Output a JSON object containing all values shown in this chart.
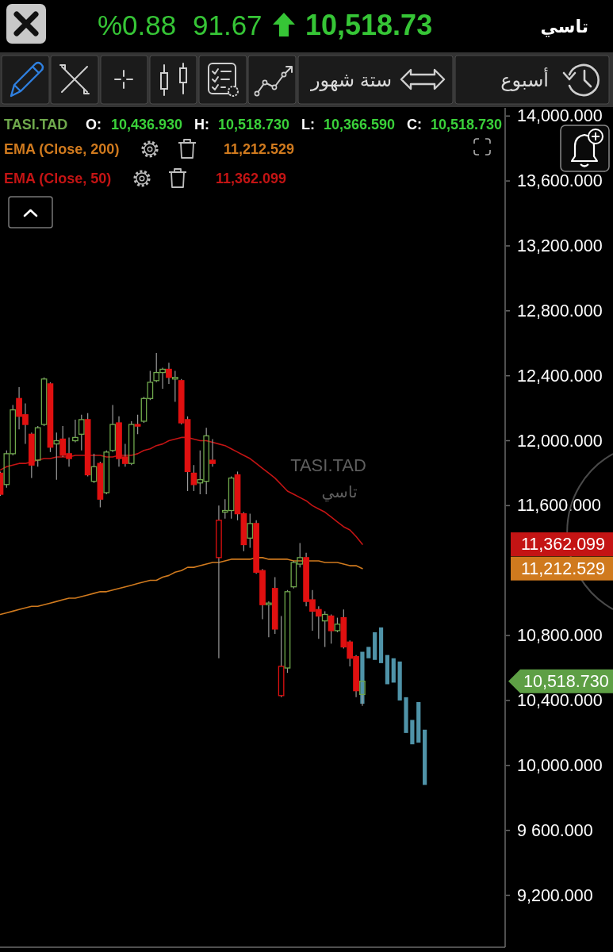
{
  "chart_data": {
    "type": "candlestick",
    "title": "تاسي",
    "categories": [
      null,
      null,
      null,
      null,
      null,
      null,
      null,
      null,
      null,
      null,
      null,
      null,
      null,
      null,
      null,
      null,
      null,
      null,
      null,
      null,
      null,
      null,
      null,
      null,
      null,
      null,
      null,
      null,
      null,
      null,
      null,
      null,
      null,
      null,
      null,
      null,
      null,
      null,
      null,
      null,
      null,
      null,
      null,
      null,
      null,
      null,
      null,
      null,
      null,
      null,
      null,
      null,
      null,
      null,
      null,
      null,
      null,
      null,
      null,
      null,
      null,
      null,
      null,
      null,
      null,
      null,
      null,
      null,
      null
    ],
    "series": [
      {
        "name": "TASI.TAD",
        "color": "#6FA84C",
        "ohlc": [
          [
            11800,
            11810,
            11660,
            11670
          ],
          [
            11730,
            11940,
            11710,
            11920
          ],
          [
            11920,
            12220,
            11910,
            12190
          ],
          [
            12260,
            12330,
            12070,
            12150
          ],
          [
            12160,
            12230,
            11980,
            12100
          ],
          [
            12040,
            12050,
            11770,
            11850
          ],
          [
            11880,
            12090,
            11840,
            12080
          ],
          [
            12100,
            12390,
            12090,
            12380
          ],
          [
            12350,
            12360,
            11930,
            11960
          ],
          [
            11980,
            12050,
            11760,
            12000
          ],
          [
            12010,
            12090,
            11900,
            11910
          ],
          [
            11920,
            12020,
            11840,
            11890
          ],
          [
            12000,
            12130,
            11990,
            12020
          ],
          [
            12040,
            12160,
            11940,
            12130
          ],
          [
            12130,
            12170,
            11780,
            11790
          ],
          [
            11750,
            11920,
            11740,
            11840
          ],
          [
            11860,
            11870,
            11590,
            11640
          ],
          [
            11680,
            11940,
            11670,
            11930
          ],
          [
            11940,
            12220,
            11930,
            12100
          ],
          [
            12110,
            12150,
            11840,
            11890
          ],
          [
            11900,
            11980,
            11840,
            11860
          ],
          [
            11860,
            12120,
            11850,
            12100
          ],
          [
            12100,
            12160,
            12040,
            12090
          ],
          [
            12120,
            12270,
            12110,
            12260
          ],
          [
            12260,
            12430,
            12250,
            12360
          ],
          [
            12370,
            12540,
            12360,
            12420
          ],
          [
            12420,
            12450,
            12320,
            12440
          ],
          [
            12440,
            12480,
            12350,
            12390
          ],
          [
            12380,
            12430,
            12240,
            12390
          ],
          [
            12370,
            12380,
            12100,
            12110
          ],
          [
            12130,
            12150,
            11690,
            11810
          ],
          [
            11800,
            11850,
            11690,
            11730
          ],
          [
            11740,
            11940,
            11670,
            11760
          ],
          [
            11750,
            12080,
            11670,
            12030
          ],
          [
            11880,
            12010,
            11840,
            11860
          ],
          [
            11280,
            11600,
            10660,
            11510
          ],
          [
            11560,
            11640,
            11520,
            11570
          ],
          [
            11570,
            11780,
            11520,
            11770
          ],
          [
            11790,
            11810,
            11510,
            11550
          ],
          [
            11550,
            11560,
            11320,
            11360
          ],
          [
            11400,
            11550,
            11340,
            11490
          ],
          [
            11490,
            11510,
            11180,
            11190
          ],
          [
            11200,
            11210,
            10900,
            10990
          ],
          [
            10990,
            11010,
            10790,
            11000
          ],
          [
            11090,
            11160,
            10810,
            10840
          ],
          [
            10430,
            10920,
            10420,
            10610
          ],
          [
            10600,
            11080,
            10570,
            11070
          ],
          [
            11100,
            11260,
            11090,
            11250
          ],
          [
            11240,
            11370,
            11220,
            11280
          ],
          [
            11280,
            11310,
            10980,
            11010
          ],
          [
            11020,
            11080,
            10830,
            10950
          ],
          [
            10960,
            10980,
            10780,
            10920
          ],
          [
            10890,
            10950,
            10730,
            10930
          ],
          [
            10920,
            10930,
            10750,
            10830
          ],
          [
            10830,
            10910,
            10820,
            10870
          ],
          [
            10910,
            10960,
            10720,
            10730
          ],
          [
            10760,
            10770,
            10610,
            10660
          ],
          [
            10670,
            10680,
            10420,
            10460
          ],
          [
            10436.93,
            10518.73,
            10366.59,
            10518.73
          ],
          null,
          null,
          null,
          null,
          null,
          null,
          null,
          null,
          null,
          null
        ],
        "colors": [
          "#E01010",
          "#6FA84C",
          "#6FA84C",
          "#E01010",
          "#E01010",
          "#E01010",
          "#6FA84C",
          "#6FA84C",
          "#E01010",
          "#6FA84C",
          "#E01010",
          "#E01010",
          "#6FA84C",
          "#6FA84C",
          "#E01010",
          "#6FA84C",
          "#E01010",
          "#6FA84C",
          "#6FA84C",
          "#E01010",
          "#E01010",
          "#6FA84C",
          "#E01010",
          "#6FA84C",
          "#6FA84C",
          "#6FA84C",
          "#6FA84C",
          "#E01010",
          "#6FA84C",
          "#E01010",
          "#E01010",
          "#E01010",
          "#6FA84C",
          "#6FA84C",
          "#E01010",
          "#E01010",
          "#6FA84C",
          "#6FA84C",
          "#E01010",
          "#E01010",
          "#6FA84C",
          "#E01010",
          "#E01010",
          "#6FA84C",
          "#E01010",
          "#E01010",
          "#6FA84C",
          "#6FA84C",
          "#6FA84C",
          "#E01010",
          "#E01010",
          "#E01010",
          "#6FA84C",
          "#E01010",
          "#6FA84C",
          "#E01010",
          "#E01010",
          "#E01010",
          "#6FA84C",
          null,
          null,
          null,
          null,
          null,
          null,
          null,
          null,
          null,
          null
        ]
      },
      {
        "name": "EMA (Close, 200)",
        "type": "line",
        "color": "#D07A1E",
        "values": [
          10930,
          10940,
          10950,
          10960,
          10970,
          10980,
          10980,
          10990,
          11000,
          11010,
          11020,
          11030,
          11030,
          11040,
          11050,
          11060,
          11070,
          11070,
          11080,
          11090,
          11100,
          11110,
          11120,
          11130,
          11140,
          11140,
          11160,
          11170,
          11190,
          11200,
          11220,
          11220,
          11230,
          11240,
          11250,
          11250,
          11260,
          11270,
          11270,
          11270,
          11270,
          11280,
          11280,
          11270,
          11270,
          11270,
          11270,
          11260,
          11260,
          11260,
          11260,
          11260,
          11250,
          11250,
          11250,
          11240,
          11230,
          11230,
          11212.529,
          null,
          null,
          null,
          null,
          null,
          null,
          null,
          null,
          null,
          null
        ]
      },
      {
        "name": "EMA (Close, 50)",
        "type": "line",
        "color": "#C41414",
        "values": [
          11820,
          11840,
          11850,
          11860,
          11860,
          11870,
          11880,
          11890,
          11890,
          11900,
          11900,
          11900,
          11910,
          11910,
          11910,
          11910,
          11910,
          11900,
          11900,
          11910,
          11910,
          11910,
          11920,
          11940,
          11950,
          11970,
          11980,
          12000,
          12010,
          12020,
          12020,
          12010,
          12000,
          12000,
          11990,
          11980,
          11970,
          11950,
          11930,
          11910,
          11890,
          11860,
          11830,
          11800,
          11770,
          11730,
          11690,
          11670,
          11650,
          11630,
          11600,
          11580,
          11560,
          11530,
          11500,
          11470,
          11450,
          11410,
          11362.099,
          null,
          null,
          null,
          null,
          null,
          null,
          null,
          null,
          null,
          null
        ]
      },
      {
        "type": "bar",
        "color": "#4F93A8",
        "base": [
          null,
          null,
          null,
          null,
          null,
          null,
          null,
          null,
          null,
          null,
          null,
          null,
          null,
          null,
          null,
          null,
          null,
          null,
          null,
          null,
          null,
          null,
          null,
          null,
          null,
          null,
          null,
          null,
          null,
          null,
          null,
          null,
          null,
          null,
          null,
          null,
          null,
          null,
          null,
          null,
          null,
          null,
          null,
          null,
          null,
          null,
          null,
          null,
          null,
          null,
          null,
          null,
          null,
          null,
          null,
          null,
          null,
          null,
          10380,
          10660,
          10650,
          10630,
          10500,
          10510,
          10400,
          10200,
          10130,
          10140,
          9880
        ],
        "values": [
          null,
          null,
          null,
          null,
          null,
          null,
          null,
          null,
          null,
          null,
          null,
          null,
          null,
          null,
          null,
          null,
          null,
          null,
          null,
          null,
          null,
          null,
          null,
          null,
          null,
          null,
          null,
          null,
          null,
          null,
          null,
          null,
          null,
          null,
          null,
          null,
          null,
          null,
          null,
          null,
          null,
          null,
          null,
          null,
          null,
          null,
          null,
          null,
          null,
          null,
          null,
          null,
          null,
          null,
          null,
          null,
          null,
          null,
          320,
          70,
          170,
          220,
          180,
          150,
          240,
          220,
          150,
          250,
          340
        ]
      }
    ],
    "ylim": [
      8880,
      14050
    ],
    "yticks": [
      {
        "value": 9200,
        "label": "9,200.000"
      },
      {
        "value": 9600,
        "label": "9 600.000"
      },
      {
        "value": 10000,
        "label": "10,000.000"
      },
      {
        "value": 10400,
        "label": "10,400.000"
      },
      {
        "value": 10800,
        "label": "10,800.000"
      },
      {
        "value": 11600,
        "label": "11,600.000"
      },
      {
        "value": 12000,
        "label": "12,000.000"
      },
      {
        "value": 12400,
        "label": "12,400.000"
      },
      {
        "value": 12800,
        "label": "12,800.000"
      },
      {
        "value": 13200,
        "label": "13,200.000"
      },
      {
        "value": 13600,
        "label": "13,600.000"
      },
      {
        "value": 14000,
        "label": "14,000.000"
      }
    ],
    "legend": "top left",
    "annotations": [
      "10,518.73",
      "91.67",
      "%0.88",
      "ستة شهور",
      "أسبوع",
      "O:",
      "10,436.930",
      "H:",
      "10,518.730",
      "L:",
      "10,366.590",
      "C:",
      "10,518.730",
      "11,212.529",
      "11,362.099",
      "TASI.TAD",
      "تاسي",
      "11,362.099",
      "11,212.529",
      "10,518.730"
    ]
  }
}
